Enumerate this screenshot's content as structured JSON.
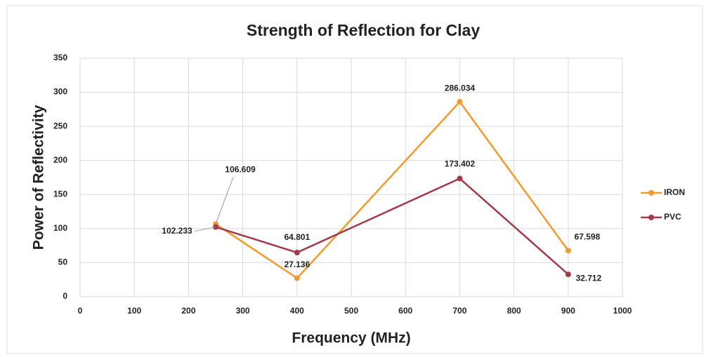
{
  "chart_data": {
    "type": "line",
    "title": "Strength of Reflection for Clay",
    "xlabel": "Frequency (MHz)",
    "ylabel": "Power of Reflectivity",
    "x": [
      250,
      400,
      700,
      900
    ],
    "series": [
      {
        "name": "IRON",
        "color": "#f39a2c",
        "values": [
          106.609,
          27.136,
          286.034,
          67.598
        ]
      },
      {
        "name": "PVC",
        "color": "#a33a4a",
        "values": [
          102.233,
          64.801,
          173.402,
          32.712
        ]
      }
    ],
    "xlim": [
      0,
      1000
    ],
    "xticks": [
      0,
      100,
      200,
      300,
      400,
      500,
      600,
      700,
      800,
      900,
      1000
    ],
    "ylim": [
      0,
      350
    ],
    "yticks": [
      0,
      50,
      100,
      150,
      200,
      250,
      300,
      350
    ],
    "grid": true,
    "legend": "right"
  }
}
